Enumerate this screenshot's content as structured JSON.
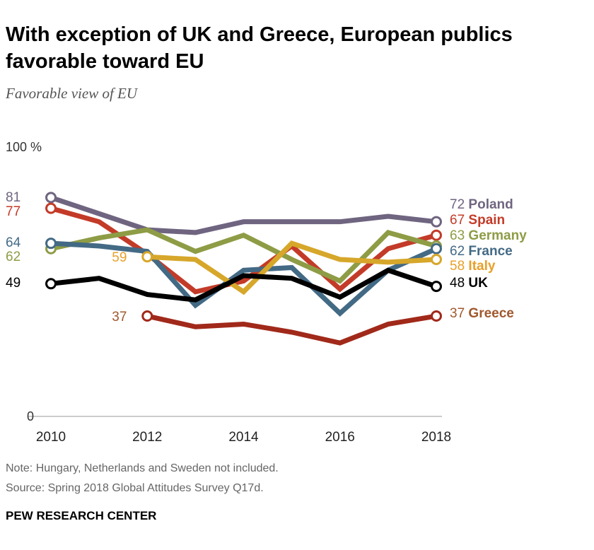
{
  "chart_data": {
    "type": "line",
    "title": "With exception of UK and Greece, European publics favorable toward EU",
    "subtitle": "Favorable view of EU",
    "ylim": [
      0,
      100
    ],
    "y_tick_labels": [
      "100 %",
      "0"
    ],
    "x_ticks": [
      2010,
      2012,
      2014,
      2016,
      2018
    ],
    "grid": false,
    "legend": "direct labels at line ends (right)",
    "x": [
      2010,
      2011,
      2012,
      2013,
      2014,
      2015,
      2016,
      2017,
      2018
    ],
    "series": [
      {
        "name": "Poland",
        "color": "#6f6580",
        "labelColor": "#6f6580",
        "values": [
          81,
          75,
          69,
          68,
          72,
          72,
          72,
          74,
          72
        ]
      },
      {
        "name": "Spain",
        "color": "#c33b28",
        "labelColor": "#c33b28",
        "values": [
          77,
          72,
          60,
          46,
          50,
          63,
          47,
          62,
          67
        ]
      },
      {
        "name": "Germany",
        "color": "#8e9c45",
        "labelColor": "#8e9c45",
        "values": [
          62,
          66,
          69,
          61,
          67,
          58,
          50,
          68,
          63
        ]
      },
      {
        "name": "France",
        "color": "#436a85",
        "labelColor": "#436a85",
        "values": [
          64,
          63,
          61,
          41,
          54,
          55,
          38,
          54,
          62
        ]
      },
      {
        "name": "Italy",
        "color": "#d6a72a",
        "labelColor": "#e8a02a",
        "values": [
          null,
          null,
          59,
          58,
          46,
          64,
          58,
          57,
          58
        ]
      },
      {
        "name": "UK",
        "color": "#000000",
        "labelColor": "#000000",
        "values": [
          49,
          51,
          45,
          43,
          52,
          51,
          44,
          54,
          48
        ]
      },
      {
        "name": "Greece",
        "color": "#a1291a",
        "labelColor": "#a0582d",
        "values": [
          null,
          null,
          37,
          33,
          34,
          31,
          27,
          34,
          37
        ]
      }
    ]
  },
  "footer": {
    "note": "Note: Hungary, Netherlands and Sweden not included.",
    "source": "Source: Spring 2018 Global Attitudes Survey Q17d.",
    "brand": "PEW RESEARCH CENTER"
  }
}
